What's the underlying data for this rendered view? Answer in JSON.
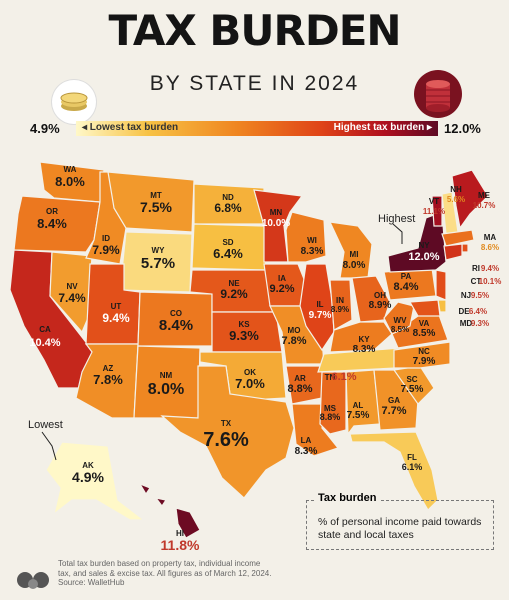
{
  "header": {
    "title": "TAX BURDEN",
    "subtitle": "BY STATE IN 2024"
  },
  "legend": {
    "min": "4.9%",
    "max": "12.0%",
    "low_label": "◂ Lowest tax burden",
    "high_label": "Highest tax burden ▸",
    "colors": [
      "#fff8c8",
      "#f7c244",
      "#ef8420",
      "#df4318",
      "#b0101f",
      "#5e0a24"
    ]
  },
  "callouts": {
    "highest": "Highest",
    "lowest": "Lowest"
  },
  "key": {
    "title": "Tax burden",
    "text": "% of personal income paid towards state and local taxes"
  },
  "footnote": {
    "line1": "Total tax burden based on property tax, individual income",
    "line2": "tax, and sales & excise tax. All figures as of March 12, 2024.",
    "line3": "Source: WalletHub"
  },
  "states": {
    "WA": "8.0%",
    "OR": "8.4%",
    "CA": "10.4%",
    "NV": "7.4%",
    "ID": "7.9%",
    "MT": "7.5%",
    "WY": "5.7%",
    "UT": "9.4%",
    "AZ": "7.8%",
    "CO": "8.4%",
    "NM": "8.0%",
    "ND": "6.8%",
    "SD": "6.4%",
    "NE": "9.2%",
    "KS": "9.3%",
    "OK": "7.0%",
    "TX": "7.6%",
    "MN": "10.0%",
    "IA": "9.2%",
    "MO": "7.8%",
    "AR": "8.8%",
    "LA": "8.3%",
    "WI": "8.3%",
    "IL": "9.7%",
    "MI": "8.0%",
    "IN": "8.9%",
    "OH": "8.9%",
    "KY": "8.3%",
    "TN": "6.1%",
    "MS": "8.8%",
    "AL": "7.5%",
    "GA": "7.7%",
    "FL": "6.1%",
    "SC": "7.5%",
    "NC": "7.9%",
    "VA": "8.5%",
    "WV": "8.5%",
    "PA": "8.4%",
    "NY": "12.0%",
    "VT": "11.1%",
    "NH": "5.6%",
    "ME": "10.7%",
    "MA": "8.6%",
    "RI": "9.4%",
    "CT": "10.1%",
    "NJ": "9.5%",
    "DE": "6.4%",
    "MD": "9.3%",
    "AK": "4.9%",
    "HI": "11.8%"
  }
}
